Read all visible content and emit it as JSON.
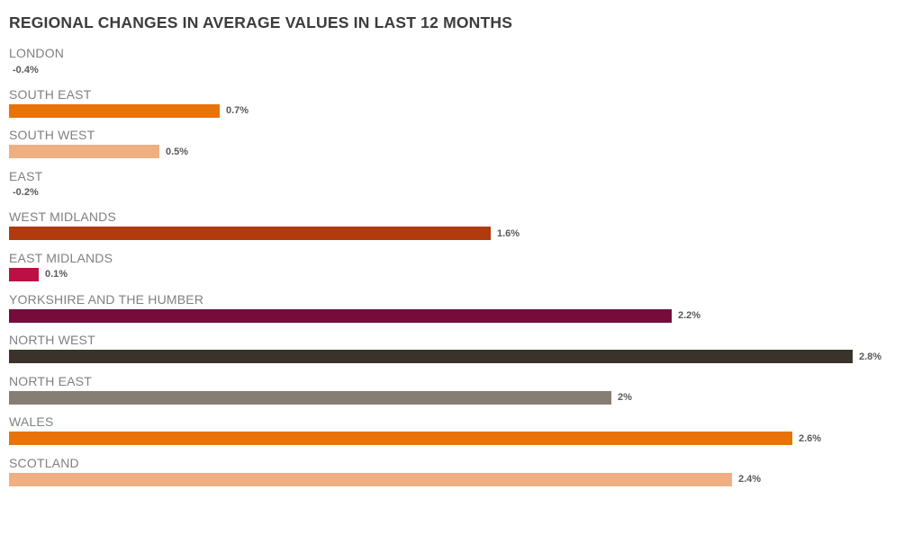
{
  "chart_data": {
    "type": "bar",
    "orientation": "horizontal",
    "title": "REGIONAL CHANGES IN AVERAGE VALUES IN LAST 12 MONTHS",
    "unit": "%",
    "categories": [
      "LONDON",
      "SOUTH EAST",
      "SOUTH WEST",
      "EAST",
      "WEST MIDLANDS",
      "EAST MIDLANDS",
      "YORKSHIRE AND THE HUMBER",
      "NORTH WEST",
      "NORTH EAST",
      "WALES",
      "SCOTLAND"
    ],
    "values": [
      -0.4,
      0.7,
      0.5,
      -0.2,
      1.6,
      0.1,
      2.2,
      2.8,
      2,
      2.6,
      2.4
    ],
    "value_labels": [
      "-0.4%",
      "0.7%",
      "0.5%",
      "-0.2%",
      "1.6%",
      "0.1%",
      "2.2%",
      "2.8%",
      "2%",
      "2.6%",
      "2.4%"
    ],
    "bar_colors": [
      "",
      "#E87309",
      "#EFAF82",
      "",
      "#B23A0F",
      "#BC1044",
      "#750C3C",
      "#3A332B",
      "#867D74",
      "#E87309",
      "#EFAF82"
    ],
    "xlim": [
      0,
      2.8
    ],
    "grid": false,
    "legend": false,
    "data_labels": "outside-end"
  },
  "colors": {
    "background": "#FFFFFF",
    "title_text": "#3C3C3C",
    "region_label_text": "#808080",
    "value_label_text": "#595959"
  }
}
